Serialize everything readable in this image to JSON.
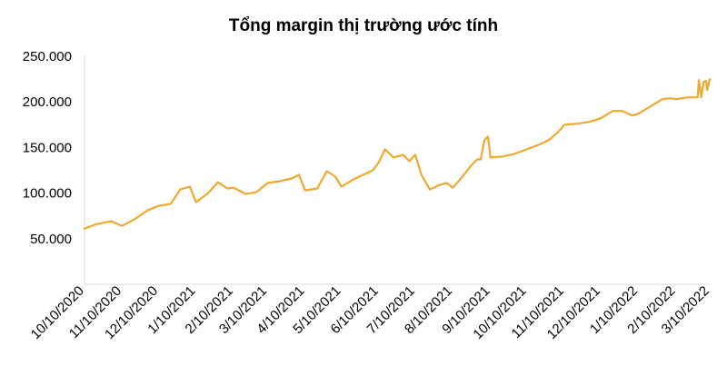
{
  "chart_data": {
    "type": "line",
    "title": "Tổng margin thị trường ước tính",
    "xlabel": "",
    "ylabel": "",
    "ylim": [
      0,
      250000
    ],
    "y_ticks": [
      0,
      50000,
      100000,
      150000,
      200000,
      250000
    ],
    "y_tick_labels": [
      "",
      "50.000",
      "100.000",
      "150.000",
      "200.000",
      "250.000"
    ],
    "x_tick_labels": [
      "10/10/2020",
      "11/10/2020",
      "12/10/2020",
      "1/10/2021",
      "2/10/2021",
      "3/10/2021",
      "4/10/2021",
      "5/10/2021",
      "6/10/2021",
      "7/10/2021",
      "8/10/2021",
      "9/10/2021",
      "10/10/2021",
      "11/10/2021",
      "12/10/2021",
      "1/10/2022",
      "2/10/2022",
      "3/10/2022"
    ],
    "grid": false,
    "line_color": "#F0A830",
    "series": [
      {
        "x": [
          "10/10/2020",
          "10/20/2020",
          "11/1/2020",
          "11/10/2020",
          "11/20/2020",
          "12/1/2020",
          "12/10/2020",
          "12/20/2020",
          "12/28/2020",
          "1/5/2021",
          "1/10/2021",
          "1/20/2021",
          "1/28/2021",
          "2/5/2021",
          "2/10/2021",
          "2/20/2021",
          "3/1/2021",
          "3/10/2021",
          "3/20/2021",
          "3/30/2021",
          "4/5/2021",
          "4/10/2021",
          "4/20/2021",
          "4/28/2021",
          "5/5/2021",
          "5/10/2021",
          "5/20/2021",
          "5/28/2021",
          "6/5/2021",
          "6/10/2021",
          "6/15/2021",
          "6/22/2021",
          "6/30/2021",
          "7/5/2021",
          "7/10/2021",
          "7/15/2021",
          "7/22/2021",
          "7/30/2021",
          "8/5/2021",
          "8/10/2021",
          "8/18/2021",
          "8/25/2021",
          "8/30/2021",
          "9/2/2021",
          "9/5/2021",
          "9/8/2021",
          "9/10/2021",
          "9/20/2021",
          "9/30/2021",
          "10/10/2021",
          "10/20/2021",
          "10/28/2021",
          "11/5/2021",
          "11/10/2021",
          "11/20/2021",
          "11/30/2021",
          "12/10/2021",
          "12/20/2021",
          "12/28/2021",
          "1/5/2022",
          "1/10/2022",
          "1/20/2022",
          "1/30/2022",
          "2/5/2022",
          "2/10/2022",
          "2/20/2022",
          "2/28/2022",
          "3/1/2022",
          "3/3/2022",
          "3/5/2022",
          "3/7/2022",
          "3/8/2022",
          "3/10/2022"
        ],
        "values": [
          61000,
          66000,
          69000,
          64000,
          71000,
          81000,
          86000,
          88000,
          104000,
          107000,
          90000,
          100000,
          112000,
          105000,
          106000,
          99000,
          101000,
          111000,
          113000,
          116000,
          120000,
          103000,
          105000,
          124000,
          118000,
          107000,
          115000,
          120000,
          125000,
          134000,
          148000,
          139000,
          142000,
          135000,
          142000,
          120000,
          104000,
          109000,
          111000,
          106000,
          118000,
          130000,
          137000,
          137000,
          158000,
          162000,
          139000,
          140000,
          143000,
          148000,
          153000,
          158000,
          167000,
          175000,
          176000,
          178000,
          182000,
          190000,
          190000,
          185000,
          187000,
          195000,
          203000,
          204000,
          203000,
          205000,
          205000,
          224000,
          205000,
          222000,
          223000,
          213000,
          225000
        ]
      }
    ]
  }
}
